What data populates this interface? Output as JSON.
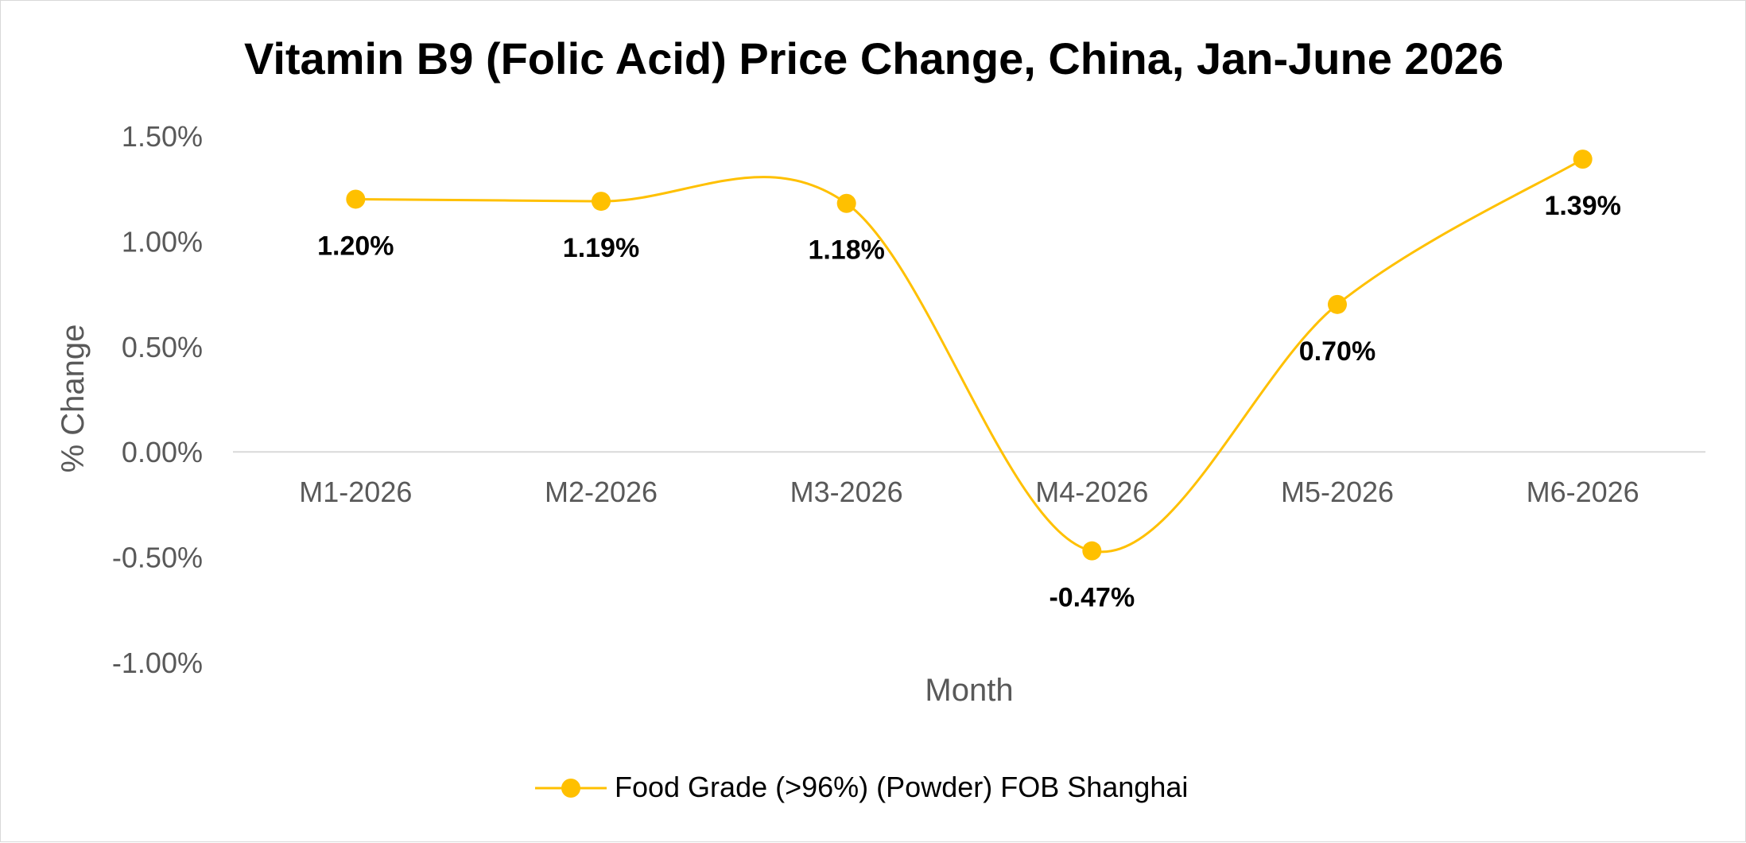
{
  "chart_data": {
    "type": "line",
    "title": "Vitamin B9 (Folic Acid) Price Change, China, Jan-June 2026",
    "xlabel": "Month",
    "ylabel": "% Change",
    "categories": [
      "M1-2026",
      "M2-2026",
      "M3-2026",
      "M4-2026",
      "M5-2026",
      "M6-2026"
    ],
    "series": [
      {
        "name": "Food Grade (>96%) (Powder) FOB Shanghai",
        "values": [
          1.2,
          1.19,
          1.18,
          -0.47,
          0.7,
          1.39
        ],
        "labels": [
          "1.20%",
          "1.19%",
          "1.18%",
          "-0.47%",
          "0.70%",
          "1.39%"
        ],
        "color": "#FFC000",
        "smooth": true
      }
    ],
    "ylim": [
      -1.0,
      1.5
    ],
    "yticks": [
      1.5,
      1.0,
      0.5,
      0.0,
      -0.5,
      -1.0
    ],
    "ytick_labels": [
      "1.50%",
      "1.00%",
      "0.50%",
      "0.00%",
      "-0.50%",
      "-1.00%"
    ],
    "grid": false,
    "legend_position": "bottom"
  }
}
